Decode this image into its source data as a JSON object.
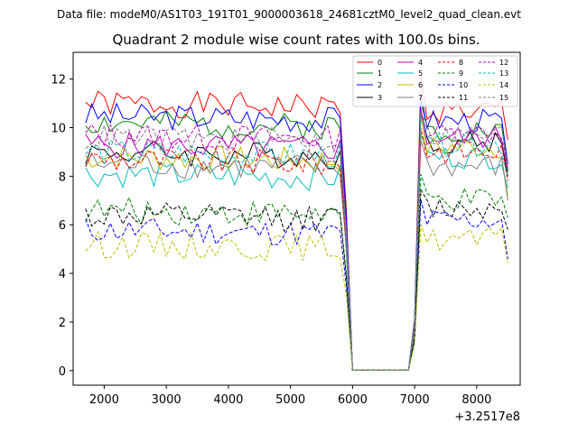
{
  "chart_data": {
    "type": "line",
    "suptitle": "Data file: modeM0/AS1T03_191T01_9000003618_24681cztM0_level2_quad_clean.evt",
    "title": "Quadrant 2 module wise count rates with 100.0s bins.",
    "xlabel": "",
    "ylabel": "",
    "x_offset_label": "+3.2517e8",
    "xlim": [
      1500,
      8700
    ],
    "ylim": [
      -0.6,
      13.1
    ],
    "xticks": [
      2000,
      3000,
      4000,
      5000,
      6000,
      7000,
      8000
    ],
    "yticks": [
      0,
      2,
      4,
      6,
      8,
      10,
      12
    ],
    "legend_position": "upper-right",
    "x_start": 1700,
    "x_step": 100,
    "gap_start_index": 43,
    "gap_end_index": 52,
    "series": [
      {
        "name": "0",
        "color": "#ff0000",
        "dash": "solid",
        "level": 11.0,
        "tail": 10.7,
        "end": 9.5,
        "seed": 1
      },
      {
        "name": "1",
        "color": "#008000",
        "dash": "solid",
        "level": 10.2,
        "tail": 9.9,
        "end": 8.2,
        "seed": 2
      },
      {
        "name": "2",
        "color": "#0000ff",
        "dash": "solid",
        "level": 10.5,
        "tail": 10.3,
        "end": 8.5,
        "seed": 3
      },
      {
        "name": "3",
        "color": "#000000",
        "dash": "solid",
        "level": 9.0,
        "tail": 9.4,
        "end": 8.0,
        "seed": 4
      },
      {
        "name": "4",
        "color": "#bf00bf",
        "dash": "solid",
        "level": 9.3,
        "tail": 9.6,
        "end": 8.3,
        "seed": 5
      },
      {
        "name": "5",
        "color": "#00bfbf",
        "dash": "solid",
        "level": 8.1,
        "tail": 8.8,
        "end": 7.5,
        "seed": 6
      },
      {
        "name": "6",
        "color": "#bfbf00",
        "dash": "solid",
        "level": 8.8,
        "tail": 9.2,
        "end": 7.2,
        "seed": 7
      },
      {
        "name": "7",
        "color": "#808080",
        "dash": "solid",
        "level": 8.5,
        "tail": 8.4,
        "end": 7.0,
        "seed": 8
      },
      {
        "name": "8",
        "color": "#ff0000",
        "dash": "dashed",
        "level": 8.7,
        "tail": 9.0,
        "end": 7.8,
        "seed": 9
      },
      {
        "name": "9",
        "color": "#008000",
        "dash": "dashed",
        "level": 6.6,
        "tail": 7.0,
        "end": 6.3,
        "seed": 10
      },
      {
        "name": "10",
        "color": "#0000ff",
        "dash": "dashed",
        "level": 5.8,
        "tail": 6.2,
        "end": 4.6,
        "seed": 11
      },
      {
        "name": "11",
        "color": "#000000",
        "dash": "dashed",
        "level": 6.4,
        "tail": 6.7,
        "end": 5.8,
        "seed": 12
      },
      {
        "name": "12",
        "color": "#bf00bf",
        "dash": "dashed",
        "level": 9.7,
        "tail": 9.8,
        "end": 8.6,
        "seed": 13
      },
      {
        "name": "13",
        "color": "#00bfbf",
        "dash": "dashed",
        "level": 9.0,
        "tail": 9.3,
        "end": 8.0,
        "seed": 14
      },
      {
        "name": "14",
        "color": "#bfbf00",
        "dash": "dashed",
        "level": 5.2,
        "tail": 5.4,
        "end": 4.4,
        "seed": 15
      },
      {
        "name": "15",
        "color": "#808080",
        "dash": "dashed",
        "level": 9.6,
        "tail": 9.7,
        "end": 8.4,
        "seed": 16
      }
    ]
  }
}
